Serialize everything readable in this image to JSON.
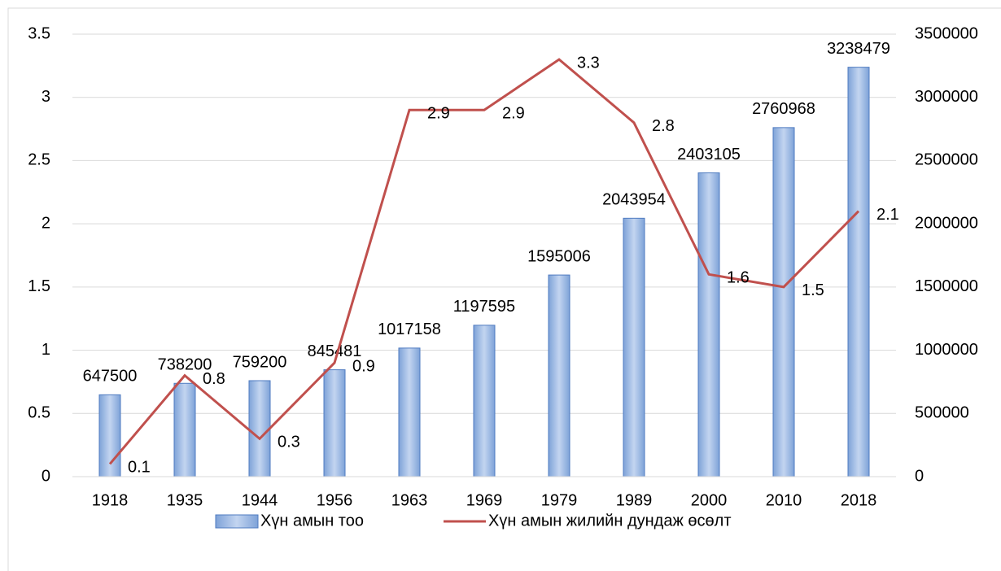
{
  "chart_data": {
    "type": "bar_line",
    "categories": [
      "1918",
      "1935",
      "1944",
      "1956",
      "1963",
      "1969",
      "1979",
      "1989",
      "2000",
      "2010",
      "2018"
    ],
    "series": [
      {
        "name": "Хүн амын тоо",
        "type": "bar",
        "axis": "y2",
        "color": "#95b3e0",
        "values": [
          647500,
          738200,
          759200,
          845481,
          1017158,
          1197595,
          1595006,
          2043954,
          2403105,
          2760968,
          3238479
        ]
      },
      {
        "name": "Хүн амын жилийн дундаж өсөлт",
        "type": "line",
        "axis": "y",
        "color": "#c0504d",
        "values": [
          0.1,
          0.8,
          0.3,
          0.9,
          2.9,
          2.9,
          3.3,
          2.8,
          1.6,
          1.5,
          2.1
        ]
      }
    ],
    "ylim": [
      0,
      3.5
    ],
    "yticks": [
      0,
      0.5,
      1,
      1.5,
      2,
      2.5,
      3,
      3.5
    ],
    "y2lim": [
      0,
      3500000
    ],
    "y2ticks": [
      0,
      500000,
      1000000,
      1500000,
      2000000,
      2500000,
      3000000,
      3500000
    ],
    "grid": true,
    "legend": "bottom"
  }
}
